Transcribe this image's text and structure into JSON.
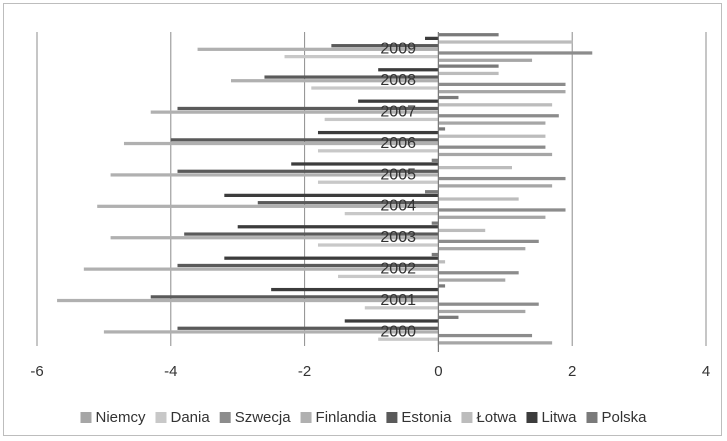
{
  "chart_data": {
    "type": "bar",
    "orientation": "horizontal",
    "categories": [
      "2000",
      "2001",
      "2002",
      "2003",
      "2004",
      "2005",
      "2006",
      "2007",
      "2008",
      "2009"
    ],
    "series": [
      {
        "name": "Niemcy",
        "color": "#a6a6a6",
        "values": [
          1.7,
          1.3,
          1.0,
          1.3,
          1.6,
          1.7,
          1.7,
          1.6,
          1.9,
          1.4
        ]
      },
      {
        "name": "Dania",
        "color": "#c8c8c8",
        "values": [
          -0.9,
          -1.1,
          -1.5,
          -1.8,
          -1.4,
          -1.8,
          -1.8,
          -1.7,
          -1.9,
          -2.3
        ]
      },
      {
        "name": "Szwecja",
        "color": "#8c8c8c",
        "values": [
          1.4,
          1.5,
          1.2,
          1.5,
          1.9,
          1.9,
          1.6,
          1.8,
          1.9,
          2.3
        ]
      },
      {
        "name": "Finlandia",
        "color": "#b0b0b0",
        "values": [
          -5.0,
          -5.7,
          -5.3,
          -4.9,
          -5.1,
          -4.9,
          -4.7,
          -4.3,
          -3.1,
          -3.6
        ]
      },
      {
        "name": "Estonia",
        "color": "#5a5a5a",
        "values": [
          -3.9,
          -4.3,
          -3.9,
          -3.8,
          -2.7,
          -3.9,
          -4.0,
          -3.9,
          -2.6,
          -1.6
        ]
      },
      {
        "name": "Łotwa",
        "color": "#bcbcbc",
        "values": [
          0.0,
          0.0,
          0.1,
          0.7,
          1.2,
          1.1,
          1.6,
          1.7,
          0.9,
          2.0
        ]
      },
      {
        "name": "Litwa",
        "color": "#3c3c3c",
        "values": [
          -1.4,
          -2.5,
          -3.2,
          -3.0,
          -3.2,
          -2.2,
          -1.8,
          -1.2,
          -0.9,
          -0.2
        ]
      },
      {
        "name": "Polska",
        "color": "#7a7a7a",
        "values": [
          0.3,
          0.1,
          -0.1,
          -0.1,
          -0.2,
          -0.1,
          0.1,
          0.3,
          0.9,
          0.9
        ]
      }
    ],
    "xlim": [
      -6,
      4
    ],
    "xticks": [
      "-6",
      "-4",
      "-2",
      "0",
      "2",
      "4"
    ],
    "grid": "vertical major gridlines",
    "legend_position": "bottom",
    "title": "",
    "xlabel": "",
    "ylabel": ""
  }
}
